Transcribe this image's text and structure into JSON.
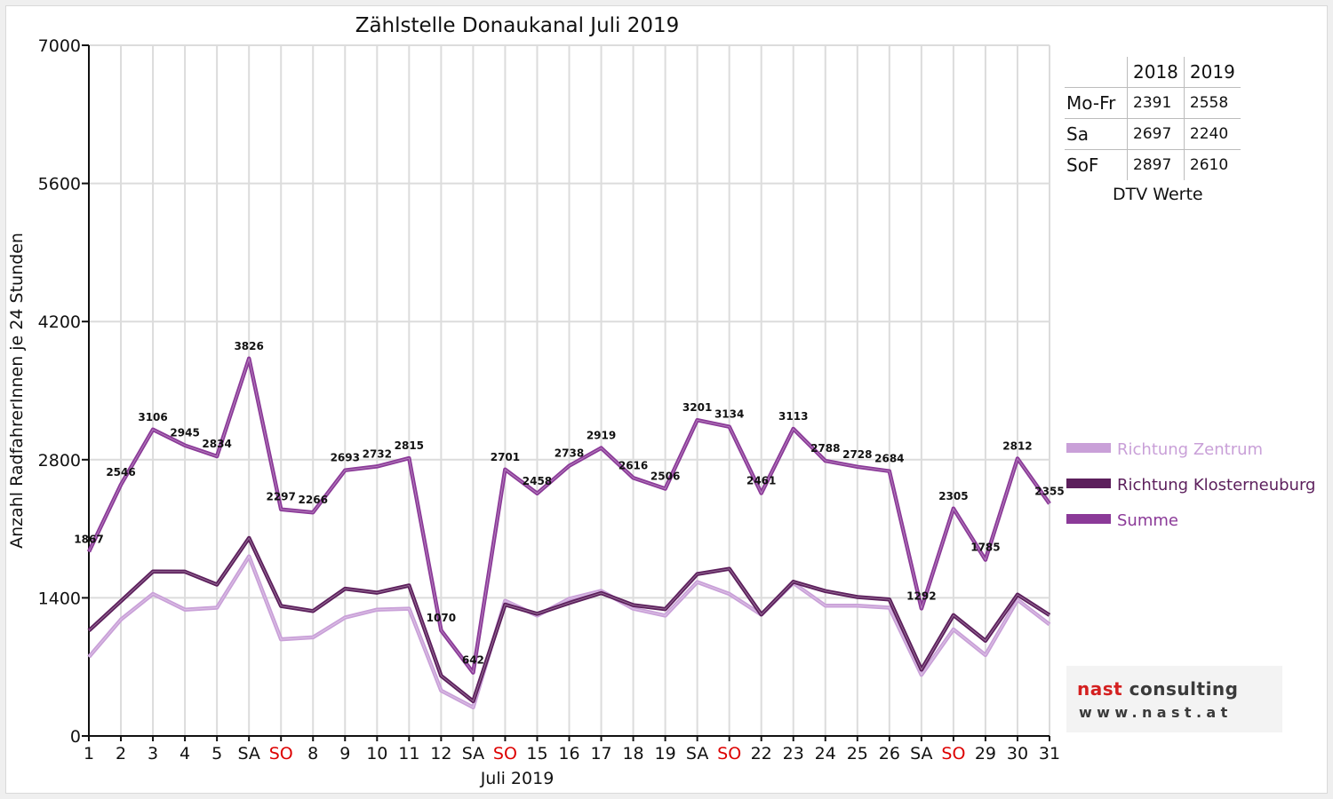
{
  "chart_data": {
    "type": "line",
    "title": "Zählstelle Donaukanal Juli 2019",
    "xlabel": "Juli 2019",
    "ylabel": "Anzahl RadfahrerInnen je 24 Stunden",
    "ylim": [
      0,
      7000
    ],
    "yticks": [
      "0",
      "1400",
      "2800",
      "4200",
      "5600",
      "7000"
    ],
    "grid": true,
    "legend_position": "right",
    "categories": [
      "1",
      "2",
      "3",
      "4",
      "5",
      "SA",
      "SO",
      "8",
      "9",
      "10",
      "11",
      "12",
      "SA",
      "SO",
      "15",
      "16",
      "17",
      "18",
      "19",
      "SA",
      "SO",
      "22",
      "23",
      "24",
      "25",
      "26",
      "SA",
      "SO",
      "29",
      "30",
      "31"
    ],
    "weekend_color": "#dd0000",
    "series": [
      {
        "name": "Richtung Zentrum",
        "color": "#c9a0d8",
        "values": [
          800,
          1180,
          1440,
          1280,
          1300,
          1820,
          980,
          1000,
          1200,
          1280,
          1290,
          460,
          290,
          1370,
          1220,
          1390,
          1470,
          1290,
          1220,
          1560,
          1440,
          1230,
          1550,
          1320,
          1320,
          1300,
          620,
          1080,
          820,
          1380,
          1130
        ]
      },
      {
        "name": "Richtung Klosterneuburg",
        "color": "#5c1f5c",
        "values": [
          1067,
          1366,
          1666,
          1665,
          1534,
          2006,
          1317,
          1266,
          1493,
          1452,
          1525,
          610,
          352,
          1331,
          1238,
          1348,
          1449,
          1326,
          1286,
          1641,
          1694,
          1231,
          1563,
          1468,
          1408,
          1384,
          672,
          1225,
          965,
          1432,
          1225
        ]
      },
      {
        "name": "Summe",
        "color": "#8b3a98",
        "values": [
          1867,
          2546,
          3106,
          2945,
          2834,
          3826,
          2297,
          2266,
          2693,
          2732,
          2815,
          1070,
          642,
          2701,
          2458,
          2738,
          2919,
          2616,
          2506,
          3201,
          3134,
          2461,
          3113,
          2788,
          2728,
          2684,
          1292,
          2305,
          1785,
          2812,
          2355
        ],
        "labels": [
          "1867",
          "2546",
          "3106",
          "2945",
          "2834",
          "3826",
          "2297",
          "2266",
          "2693",
          "2732",
          "2815",
          "1070",
          "642",
          "2701",
          "2458",
          "2738",
          "2919",
          "2616",
          "2506",
          "3201",
          "3134",
          "2461",
          "3113",
          "2788",
          "2728",
          "2684",
          "1292",
          "2305",
          "1785",
          "2812",
          "2355"
        ]
      }
    ]
  },
  "dtv": {
    "header": [
      "",
      "2018",
      "2019"
    ],
    "rows": [
      {
        "label": "Mo-Fr",
        "v2018": "2391",
        "v2019": "2558"
      },
      {
        "label": "Sa",
        "v2018": "2697",
        "v2019": "2240"
      },
      {
        "label": "SoF",
        "v2018": "2897",
        "v2019": "2610"
      }
    ],
    "caption": "DTV Werte"
  },
  "logo": {
    "name_part1": "nast",
    "name_part2": "consulting",
    "url": "www.nast.at"
  }
}
